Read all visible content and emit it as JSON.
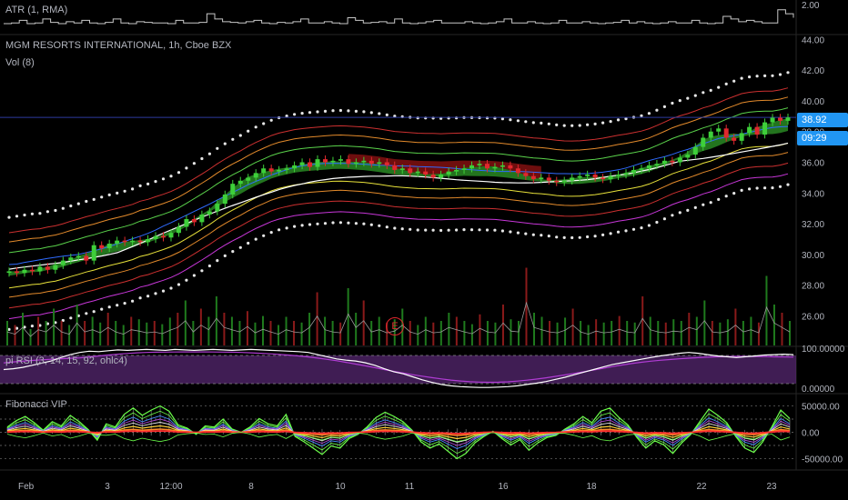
{
  "legend": {
    "atr": "ATR (1, RMA)",
    "symbol": "MGM RESORTS INTERNATIONAL, 1h, Cboe BZX",
    "vol": "Vol (8)",
    "rsi": "pi RSI (3, 14, 15, 92, ohlc4)",
    "fib": "Fibonacci VIP"
  },
  "price_badge": {
    "price": "38.92",
    "countdown": "09:29",
    "color": "#2196f3"
  },
  "earnings_marker": "E",
  "colors": {
    "up": "#3ecf3a",
    "down": "#e0282e",
    "band_fill": "#2f9b28",
    "band_fill_down": "#8a1111",
    "ma_white": "#ffffff",
    "ma_yellow": "#e8e23a",
    "ma_blue": "#2f6bff",
    "ma_magenta": "#c736d8",
    "ma_orange": "#e38a2b",
    "ma_red": "#cc3030",
    "ma_green": "#5ad34b",
    "rsi_band": "#5b2a78",
    "rsi_line": "#ffffff",
    "rsi_ma": "#b03cd4",
    "fib_green": "#6bff4a",
    "grid": "#1a1a1a",
    "priceline": "#2e3b9e"
  },
  "chart_data": [
    {
      "type": "line",
      "name": "ATR (1, RMA)",
      "y_axis_ticks": [
        "2.00"
      ],
      "values": [
        0.55,
        0.6,
        0.8,
        0.55,
        0.6,
        0.9,
        0.65,
        0.55,
        0.7,
        0.6,
        0.8,
        0.6,
        0.55,
        0.65,
        0.9,
        0.6,
        0.55,
        0.7,
        0.65,
        0.6,
        0.6,
        0.55,
        0.8,
        0.6,
        0.6,
        0.65,
        1.3,
        0.9,
        0.7,
        0.65,
        0.6,
        0.7,
        0.8,
        0.6,
        0.55,
        0.65,
        0.6,
        0.7,
        0.9,
        0.6,
        0.6,
        0.7,
        0.6,
        0.55,
        1.0,
        0.8,
        0.6,
        0.65,
        0.7,
        0.6,
        0.9,
        0.6,
        0.55,
        0.6,
        0.7,
        0.8,
        0.6,
        0.6,
        0.6,
        0.7,
        0.6,
        0.55,
        0.6,
        0.7,
        0.9,
        0.6,
        0.6,
        0.7,
        0.6,
        0.55,
        0.6,
        0.8,
        0.6,
        0.6,
        0.7,
        0.6,
        0.55,
        0.6,
        0.65,
        0.8,
        0.6,
        0.7,
        0.6,
        0.55,
        0.6,
        0.7,
        0.6,
        0.6,
        0.8,
        0.6,
        0.55,
        0.6,
        1.1,
        0.9,
        0.7,
        0.8,
        0.7,
        0.6,
        0.6,
        1.6,
        1.3,
        1.0
      ]
    },
    {
      "type": "candlestick",
      "name": "MGM RESORTS INTERNATIONAL, 1h, Cboe BZX",
      "y_axis_ticks": [
        "26.00",
        "28.00",
        "30.00",
        "32.00",
        "34.00",
        "36.00",
        "38.00",
        "40.00",
        "42.00",
        "44.00"
      ],
      "ylim": [
        24.9,
        44.2
      ],
      "last_price": 38.92,
      "x_ticks": [
        "Feb",
        "3",
        "12:00",
        "8",
        "10",
        "11",
        "16",
        "18",
        "22",
        "23"
      ],
      "closes": [
        28.9,
        28.8,
        29.0,
        28.9,
        29.2,
        29.0,
        29.3,
        29.6,
        29.8,
        29.9,
        29.6,
        30.6,
        30.4,
        30.7,
        30.9,
        30.8,
        30.9,
        30.8,
        31.0,
        31.2,
        31.1,
        31.4,
        31.8,
        32.3,
        32.1,
        32.6,
        32.8,
        33.3,
        33.9,
        34.6,
        34.8,
        35.0,
        35.3,
        35.6,
        35.4,
        35.5,
        35.6,
        35.8,
        36.0,
        35.7,
        36.2,
        36.0,
        36.1,
        36.2,
        35.9,
        36.0,
        36.1,
        35.9,
        36.0,
        35.8,
        35.5,
        35.6,
        35.3,
        35.4,
        35.2,
        35.0,
        35.2,
        35.4,
        35.5,
        35.6,
        35.8,
        35.9,
        35.6,
        35.7,
        35.8,
        35.6,
        35.3,
        35.1,
        34.9,
        35.0,
        34.8,
        34.7,
        34.8,
        35.0,
        35.1,
        35.2,
        35.0,
        34.9,
        35.1,
        35.2,
        35.3,
        35.5,
        35.6,
        35.8,
        35.9,
        36.1,
        36.0,
        36.3,
        36.5,
        37.0,
        37.6,
        38.0,
        38.2,
        37.6,
        37.4,
        37.9,
        38.3,
        37.8,
        38.6,
        38.9,
        38.7,
        38.92
      ]
    },
    {
      "type": "bar",
      "name": "Vol (8)",
      "values": [
        0.3,
        0.25,
        0.4,
        0.2,
        0.35,
        0.3,
        0.45,
        0.3,
        0.25,
        0.5,
        0.3,
        0.35,
        0.28,
        0.4,
        0.3,
        0.25,
        0.35,
        0.32,
        0.28,
        0.3,
        0.26,
        0.34,
        0.4,
        0.55,
        0.3,
        0.45,
        0.35,
        0.6,
        0.4,
        0.35,
        0.3,
        0.42,
        0.28,
        0.36,
        0.3,
        0.25,
        0.35,
        0.3,
        0.28,
        0.4,
        0.65,
        0.35,
        0.3,
        0.28,
        0.7,
        0.4,
        0.55,
        0.3,
        0.35,
        0.28,
        0.32,
        0.45,
        0.3,
        0.25,
        0.35,
        0.28,
        0.3,
        0.4,
        0.35,
        0.3,
        0.26,
        0.38,
        0.3,
        0.28,
        0.5,
        0.32,
        0.3,
        0.95,
        0.4,
        0.35,
        0.3,
        0.28,
        0.34,
        0.45,
        0.3,
        0.25,
        0.32,
        0.28,
        0.3,
        0.36,
        0.3,
        0.28,
        0.6,
        0.35,
        0.3,
        0.28,
        0.32,
        0.3,
        0.4,
        0.35,
        0.55,
        0.3,
        0.28,
        0.32,
        0.45,
        0.3,
        0.35,
        0.28,
        0.85,
        0.5,
        0.4,
        0.3
      ]
    },
    {
      "type": "line",
      "name": "pi RSI (3, 14, 15, 92, ohlc4)",
      "y_axis_ticks": [
        "100.00000",
        "0.00000"
      ],
      "ylim": [
        0,
        100
      ],
      "values": [
        50,
        52,
        55,
        60,
        65,
        70,
        78,
        85,
        90,
        93,
        92,
        94,
        96,
        95,
        96,
        97,
        96,
        95,
        97,
        96,
        95,
        96,
        97,
        96,
        95,
        96,
        97,
        96,
        95,
        94,
        93,
        92,
        90,
        85,
        80,
        75,
        72,
        70,
        66,
        60,
        52,
        45,
        40,
        33,
        26,
        20,
        15,
        12,
        10,
        9,
        8,
        8,
        9,
        10,
        12,
        15,
        18,
        22,
        27,
        32,
        38,
        44,
        50,
        56,
        62,
        66,
        70,
        74,
        78,
        82,
        85,
        88,
        90,
        88,
        85,
        82,
        80,
        78,
        80,
        82,
        84,
        85,
        86,
        85
      ]
    },
    {
      "type": "line",
      "name": "Fibonacci VIP",
      "y_axis_ticks": [
        "50000.00",
        "0.00",
        "-50000.00"
      ],
      "ylim": [
        -68000,
        68000
      ],
      "values": [
        10000,
        22000,
        30000,
        18000,
        4000,
        20000,
        12000,
        32000,
        20000,
        5000,
        -15000,
        16000,
        10000,
        34000,
        46000,
        32000,
        42000,
        50000,
        40000,
        14000,
        8000,
        -4000,
        12000,
        10000,
        25000,
        6000,
        0,
        10000,
        26000,
        16000,
        12000,
        34000,
        -8000,
        -18000,
        -30000,
        -42000,
        -26000,
        -30000,
        -12000,
        -4000,
        10000,
        28000,
        38000,
        30000,
        20000,
        4000,
        -18000,
        -30000,
        -22000,
        -36000,
        -50000,
        -40000,
        -20000,
        -8000,
        2000,
        -12000,
        -24000,
        -14000,
        -34000,
        -20000,
        -10000,
        -6000,
        6000,
        16000,
        30000,
        18000,
        40000,
        46000,
        28000,
        14000,
        -10000,
        -30000,
        -16000,
        -24000,
        -40000,
        -20000,
        -4000,
        20000,
        44000,
        32000,
        18000,
        -8000,
        -30000,
        -38000,
        -18000,
        10000,
        42000,
        26000
      ]
    }
  ]
}
